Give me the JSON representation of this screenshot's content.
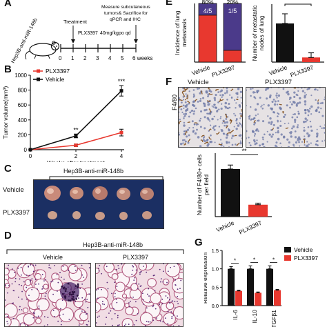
{
  "panels": {
    "A": {
      "label": "A",
      "cell_line": "Hep3B-anti-miR-148b",
      "treatment_label": "Treatment",
      "drug_label": "PLX3397",
      "dose_label": "40mg/kg",
      "route_label": "po qd",
      "endpoint_label_1": "Measure subcutaneous",
      "endpoint_label_2": "tumors& Sacrifice for",
      "endpoint_label_3": "qPCR and IHC",
      "timeline_ticks": [
        "0",
        "1",
        "2",
        "3",
        "4",
        "5",
        "6 weeks"
      ]
    },
    "B": {
      "label": "B",
      "chart_data": {
        "type": "line",
        "ylabel": "Tumor volume(mm³)",
        "xlabel": "Weeks after treatment",
        "x": [
          0,
          2,
          4
        ],
        "xticks": [
          "0",
          "2",
          "4"
        ],
        "yticks": [
          "0",
          "200",
          "400",
          "600",
          "800",
          "1000"
        ],
        "ylim": [
          0,
          1000
        ],
        "series": [
          {
            "name": "PLX3397",
            "color": "#e8382f",
            "values": [
              0,
              60,
              230
            ],
            "errors": [
              0,
              15,
              45
            ]
          },
          {
            "name": "Vehicle",
            "color": "#111111",
            "values": [
              0,
              185,
              790
            ],
            "errors": [
              0,
              25,
              70
            ]
          }
        ],
        "significance": [
          "**",
          "***"
        ]
      }
    },
    "C": {
      "label": "C",
      "title": "Hep3B-anti-miR-148b",
      "row1": "Vehicle",
      "row2": "PLX3397"
    },
    "D": {
      "label": "D",
      "title": "Hep3B-anti-miR-148b",
      "col1": "Vehicle",
      "col2": "PLX3397"
    },
    "E": {
      "label": "E",
      "chart1": {
        "type": "bar",
        "ylabel_1": "Incidence of lung",
        "ylabel_2": "metastasis",
        "categories": [
          "Vehicle",
          "PLX3397"
        ],
        "values": [
          80,
          20
        ],
        "top_labels": [
          "80%",
          "20%"
        ],
        "fractions": [
          "4/5",
          "1/5"
        ],
        "colors": {
          "positive": "#e8382f",
          "negative": "#4b3a8a"
        }
      },
      "chart2": {
        "type": "bar",
        "ylabel_1": "Number of metastatic",
        "ylabel_2": "nodes of lung",
        "categories": [
          "Vehicle",
          "PLX3397"
        ],
        "values": [
          10,
          1.2
        ],
        "errors": [
          2.5,
          1.2
        ],
        "colors": [
          "#111111",
          "#e8382f"
        ]
      }
    },
    "F": {
      "label": "F",
      "stain": "F4/80",
      "col1": "Vehicle",
      "col2": "PLX3397",
      "chart_data": {
        "type": "bar",
        "ylabel_1": "Number of F4/80+ cells",
        "ylabel_2": "per field",
        "categories": [
          "Vehicle",
          "PLX3397"
        ],
        "values": [
          30,
          7.5
        ],
        "errors": [
          2.5,
          1
        ],
        "colors": [
          "#111111",
          "#e8382f"
        ],
        "significance": "**"
      }
    },
    "G": {
      "label": "G",
      "chart_data": {
        "type": "bar",
        "ylabel": "Relative expression",
        "categories": [
          "IL-6",
          "IL-10",
          "TGFβ1"
        ],
        "yticks": [
          "0.0",
          "0.5",
          "1.0",
          "1.5"
        ],
        "ylim": [
          0,
          1.5
        ],
        "series": [
          {
            "name": "Vehicle",
            "color": "#111111",
            "values": [
              1.0,
              1.0,
              1.0
            ],
            "errors": [
              0.06,
              0.08,
              0.08
            ]
          },
          {
            "name": "PLX3397",
            "color": "#e8382f",
            "values": [
              0.4,
              0.35,
              0.42
            ],
            "errors": [
              0.02,
              0.02,
              0.02
            ]
          }
        ],
        "significance": [
          "*",
          "*",
          "*"
        ]
      }
    }
  }
}
